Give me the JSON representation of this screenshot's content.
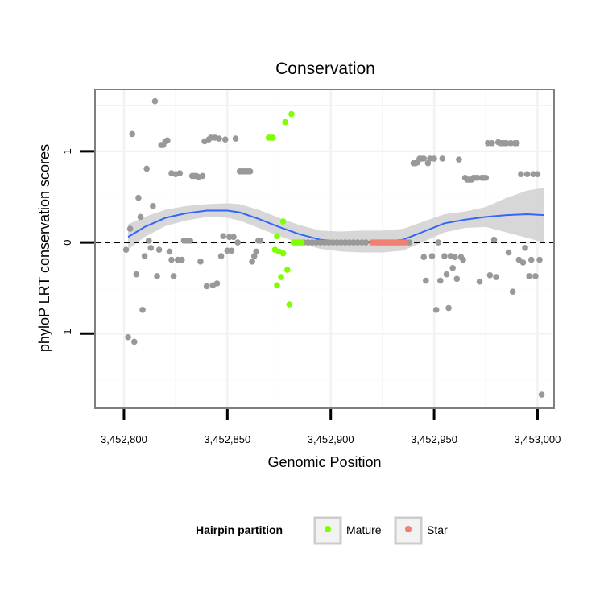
{
  "chart_data": {
    "type": "scatter",
    "title": "Conservation",
    "xlabel": "Genomic Position",
    "ylabel": "phyloP LRT conservation scores",
    "xlim": [
      3452786,
      3453008
    ],
    "ylim": [
      -1.82,
      1.68
    ],
    "x_ticks": [
      {
        "value": 3452800,
        "label": "3,452,800"
      },
      {
        "value": 3452850,
        "label": "3,452,850"
      },
      {
        "value": 3452900,
        "label": "3,452,900"
      },
      {
        "value": 3452950,
        "label": "3,452,950"
      },
      {
        "value": 3453000,
        "label": "3,453,000"
      }
    ],
    "y_ticks": [
      {
        "value": -1,
        "label": "-1"
      },
      {
        "value": 0,
        "label": "0"
      },
      {
        "value": 1,
        "label": "1"
      }
    ],
    "reference_line": {
      "y": 0,
      "style": "dashed"
    },
    "grid": true,
    "colors": {
      "other": "#999999",
      "mature": "#7FFF00",
      "star": "#F08070",
      "smooth": "#3366FF",
      "band": "#D3D3D3",
      "panel_border": "#7F7F7F",
      "grid": "#F2F2F2"
    },
    "legend": {
      "title": "Hairpin partition",
      "placement": "bottom",
      "entries": [
        {
          "name": "Mature",
          "color": "#7FFF00"
        },
        {
          "name": "Star",
          "color": "#F08070"
        }
      ]
    },
    "series": [
      {
        "name": "Mature",
        "points": [
          [
            3452870,
            1.15
          ],
          [
            3452871,
            1.15
          ],
          [
            3452872,
            1.15
          ],
          [
            3452873,
            -0.08
          ],
          [
            3452874,
            0.07
          ],
          [
            3452874,
            -0.47
          ],
          [
            3452875,
            -0.1
          ],
          [
            3452876,
            -0.38
          ],
          [
            3452877,
            -0.12
          ],
          [
            3452877,
            0.23
          ],
          [
            3452878,
            1.32
          ],
          [
            3452879,
            -0.3
          ],
          [
            3452880,
            -0.68
          ],
          [
            3452881,
            1.41
          ],
          [
            3452882,
            0.0
          ],
          [
            3452883,
            0.0
          ],
          [
            3452884,
            0.0
          ],
          [
            3452885,
            0.0
          ],
          [
            3452886,
            0.0
          ]
        ]
      },
      {
        "name": "Star",
        "points": [
          [
            3452920,
            0.0
          ],
          [
            3452921,
            0.0
          ],
          [
            3452922,
            0.0
          ],
          [
            3452923,
            0.0
          ],
          [
            3452924,
            0.0
          ],
          [
            3452925,
            0.0
          ],
          [
            3452926,
            0.0
          ],
          [
            3452927,
            0.0
          ],
          [
            3452928,
            0.0
          ],
          [
            3452929,
            0.0
          ],
          [
            3452930,
            0.0
          ],
          [
            3452931,
            0.0
          ],
          [
            3452932,
            0.0
          ],
          [
            3452933,
            0.0
          ],
          [
            3452934,
            0.0
          ],
          [
            3452935,
            0.0
          ],
          [
            3452936,
            0.0
          ]
        ]
      },
      {
        "name": "",
        "points": [
          [
            3452801,
            -0.08
          ],
          [
            3452802,
            -1.04
          ],
          [
            3452803,
            0.15
          ],
          [
            3452804,
            1.19
          ],
          [
            3452805,
            -1.09
          ],
          [
            3452806,
            -0.35
          ],
          [
            3452807,
            0.49
          ],
          [
            3452808,
            0.28
          ],
          [
            3452809,
            -0.74
          ],
          [
            3452810,
            -0.15
          ],
          [
            3452811,
            0.81
          ],
          [
            3452812,
            0.02
          ],
          [
            3452813,
            -0.06
          ],
          [
            3452814,
            0.4
          ],
          [
            3452815,
            1.55
          ],
          [
            3452816,
            -0.37
          ],
          [
            3452817,
            -0.08
          ],
          [
            3452818,
            1.07
          ],
          [
            3452819,
            1.07
          ],
          [
            3452820,
            1.11
          ],
          [
            3452821,
            1.12
          ],
          [
            3452822,
            -0.1
          ],
          [
            3452823,
            -0.19
          ],
          [
            3452823,
            0.76
          ],
          [
            3452824,
            -0.37
          ],
          [
            3452825,
            0.75
          ],
          [
            3452826,
            -0.19
          ],
          [
            3452827,
            0.76
          ],
          [
            3452828,
            -0.19
          ],
          [
            3452829,
            0.02
          ],
          [
            3452830,
            0.02
          ],
          [
            3452831,
            0.02
          ],
          [
            3452832,
            0.02
          ],
          [
            3452833,
            0.73
          ],
          [
            3452834,
            0.73
          ],
          [
            3452835,
            0.73
          ],
          [
            3452836,
            0.72
          ],
          [
            3452837,
            -0.21
          ],
          [
            3452838,
            0.73
          ],
          [
            3452839,
            1.11
          ],
          [
            3452840,
            -0.48
          ],
          [
            3452841,
            1.13
          ],
          [
            3452842,
            1.15
          ],
          [
            3452843,
            -0.47
          ],
          [
            3452844,
            1.15
          ],
          [
            3452845,
            -0.45
          ],
          [
            3452846,
            1.14
          ],
          [
            3452847,
            -0.15
          ],
          [
            3452848,
            0.07
          ],
          [
            3452849,
            1.13
          ],
          [
            3452850,
            -0.09
          ],
          [
            3452851,
            0.06
          ],
          [
            3452852,
            -0.09
          ],
          [
            3452853,
            0.06
          ],
          [
            3452854,
            1.14
          ],
          [
            3452855,
            0.0
          ],
          [
            3452856,
            0.78
          ],
          [
            3452857,
            0.78
          ],
          [
            3452858,
            0.78
          ],
          [
            3452859,
            0.78
          ],
          [
            3452860,
            0.78
          ],
          [
            3452861,
            0.78
          ],
          [
            3452862,
            -0.21
          ],
          [
            3452863,
            -0.15
          ],
          [
            3452864,
            -0.1
          ],
          [
            3452865,
            0.02
          ],
          [
            3452866,
            0.02
          ],
          [
            3452887,
            0.0
          ],
          [
            3452889,
            0.0
          ],
          [
            3452891,
            0.0
          ],
          [
            3452893,
            0.0
          ],
          [
            3452895,
            0.0
          ],
          [
            3452897,
            0.0
          ],
          [
            3452899,
            0.0
          ],
          [
            3452901,
            0.0
          ],
          [
            3452903,
            0.0
          ],
          [
            3452905,
            0.0
          ],
          [
            3452907,
            0.0
          ],
          [
            3452909,
            0.0
          ],
          [
            3452911,
            0.0
          ],
          [
            3452913,
            0.0
          ],
          [
            3452915,
            0.0
          ],
          [
            3452917,
            0.0
          ],
          [
            3452938,
            0.0
          ],
          [
            3452940,
            0.87
          ],
          [
            3452941,
            0.87
          ],
          [
            3452942,
            0.88
          ],
          [
            3452943,
            0.92
          ],
          [
            3452944,
            0.92
          ],
          [
            3452945,
            0.92
          ],
          [
            3452945,
            -0.16
          ],
          [
            3452946,
            -0.42
          ],
          [
            3452947,
            0.87
          ],
          [
            3452948,
            0.92
          ],
          [
            3452949,
            -0.15
          ],
          [
            3452950,
            0.92
          ],
          [
            3452951,
            -0.74
          ],
          [
            3452952,
            0.0
          ],
          [
            3452953,
            -0.42
          ],
          [
            3452954,
            0.92
          ],
          [
            3452955,
            -0.15
          ],
          [
            3452956,
            -0.35
          ],
          [
            3452957,
            -0.72
          ],
          [
            3452958,
            -0.15
          ],
          [
            3452959,
            -0.28
          ],
          [
            3452960,
            -0.16
          ],
          [
            3452961,
            -0.4
          ],
          [
            3452962,
            0.91
          ],
          [
            3452963,
            -0.16
          ],
          [
            3452964,
            -0.19
          ],
          [
            3452965,
            0.71
          ],
          [
            3452966,
            0.69
          ],
          [
            3452967,
            0.69
          ],
          [
            3452968,
            0.69
          ],
          [
            3452969,
            0.71
          ],
          [
            3452970,
            0.71
          ],
          [
            3452971,
            0.71
          ],
          [
            3452972,
            -0.43
          ],
          [
            3452973,
            0.71
          ],
          [
            3452974,
            0.71
          ],
          [
            3452975,
            0.71
          ],
          [
            3452976,
            1.09
          ],
          [
            3452977,
            -0.36
          ],
          [
            3452978,
            1.09
          ],
          [
            3452979,
            0.03
          ],
          [
            3452980,
            -0.38
          ],
          [
            3452981,
            1.1
          ],
          [
            3452982,
            1.09
          ],
          [
            3452983,
            1.09
          ],
          [
            3452984,
            1.09
          ],
          [
            3452985,
            1.09
          ],
          [
            3452986,
            -0.11
          ],
          [
            3452987,
            1.09
          ],
          [
            3452988,
            -0.54
          ],
          [
            3452989,
            1.09
          ],
          [
            3452990,
            1.09
          ],
          [
            3452991,
            -0.19
          ],
          [
            3452992,
            0.75
          ],
          [
            3452993,
            -0.22
          ],
          [
            3452994,
            -0.06
          ],
          [
            3452995,
            0.75
          ],
          [
            3452996,
            -0.37
          ],
          [
            3452997,
            -0.19
          ],
          [
            3452998,
            0.75
          ],
          [
            3452999,
            -0.37
          ],
          [
            3453000,
            0.75
          ],
          [
            3453001,
            -0.19
          ],
          [
            3453002,
            -1.67
          ]
        ]
      }
    ],
    "smooth": {
      "x": [
        3452802,
        3452810,
        3452820,
        3452830,
        3452840,
        3452850,
        3452856,
        3452865,
        3452875,
        3452885,
        3452895,
        3452905,
        3452915,
        3452925,
        3452935,
        3452945,
        3452955,
        3452965,
        3452975,
        3452985,
        3452995,
        3453003
      ],
      "y": [
        0.06,
        0.17,
        0.27,
        0.32,
        0.35,
        0.35,
        0.33,
        0.26,
        0.17,
        0.09,
        0.03,
        0.01,
        0.01,
        0.01,
        0.03,
        0.12,
        0.21,
        0.25,
        0.28,
        0.3,
        0.31,
        0.3
      ],
      "lower": [
        -0.08,
        0.06,
        0.18,
        0.24,
        0.28,
        0.27,
        0.24,
        0.16,
        0.07,
        -0.01,
        -0.07,
        -0.1,
        -0.11,
        -0.11,
        -0.09,
        0.01,
        0.11,
        0.16,
        0.17,
        0.11,
        0.05,
        0.0
      ],
      "upper": [
        0.2,
        0.28,
        0.36,
        0.4,
        0.42,
        0.43,
        0.42,
        0.36,
        0.27,
        0.19,
        0.13,
        0.12,
        0.13,
        0.13,
        0.15,
        0.23,
        0.31,
        0.34,
        0.39,
        0.49,
        0.57,
        0.6
      ]
    }
  }
}
